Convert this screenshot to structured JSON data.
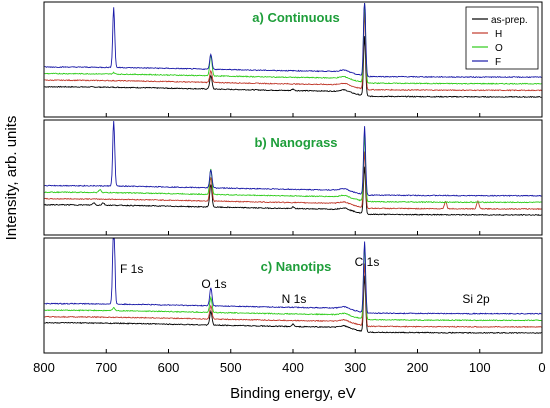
{
  "chart_data": {
    "type": "line",
    "xlabel": "Binding energy, eV",
    "ylabel": "Intensity, arb. units",
    "xlim": [
      800,
      0
    ],
    "xreverse": true,
    "x_ticks": [
      800,
      700,
      600,
      500,
      400,
      300,
      200,
      100,
      0
    ],
    "title_color": "#1e9e3a",
    "legend": {
      "placement": "top-right",
      "entries": [
        {
          "name": "as-prep.",
          "color": "#000000"
        },
        {
          "name": "H",
          "color": "#c0392b"
        },
        {
          "name": "O",
          "color": "#2ecc1a"
        },
        {
          "name": "F",
          "color": "#1a1aa8"
        }
      ]
    },
    "panels": [
      {
        "title": "a) Continuous",
        "offsets": [
          0,
          0.22,
          0.44,
          0.66
        ],
        "peaks": {
          "as-prep.": [
            [
              285,
              2.0
            ],
            [
              532,
              0.45
            ],
            [
              400,
              0.05
            ]
          ],
          "H": [
            [
              285,
              2.6
            ],
            [
              532,
              0.4
            ]
          ],
          "O": [
            [
              285,
              2.8
            ],
            [
              532,
              0.7
            ],
            [
              688,
              0.05
            ]
          ],
          "F": [
            [
              285,
              2.7
            ],
            [
              532,
              0.5
            ],
            [
              688,
              2.0
            ]
          ]
        }
      },
      {
        "title": "b) Nanograss",
        "offsets": [
          0,
          0.2,
          0.42,
          0.64
        ],
        "peaks": {
          "as-prep.": [
            [
              285,
              1.6
            ],
            [
              532,
              0.75
            ],
            [
              400,
              0.05
            ],
            [
              720,
              0.08
            ],
            [
              705,
              0.08
            ]
          ],
          "H": [
            [
              285,
              1.9
            ],
            [
              532,
              0.8
            ],
            [
              155,
              0.25
            ],
            [
              103,
              0.25
            ]
          ],
          "O": [
            [
              285,
              2.2
            ],
            [
              532,
              0.85
            ],
            [
              710,
              0.1
            ]
          ],
          "F": [
            [
              285,
              2.3
            ],
            [
              532,
              0.6
            ],
            [
              688,
              2.2
            ]
          ]
        }
      },
      {
        "title": "c) Nanotips",
        "offsets": [
          0,
          0.2,
          0.42,
          0.64
        ],
        "peaks": {
          "as-prep.": [
            [
              285,
              1.9
            ],
            [
              532,
              0.45
            ],
            [
              400,
              0.08
            ]
          ],
          "H": [
            [
              285,
              2.1
            ],
            [
              532,
              0.45
            ]
          ],
          "O": [
            [
              285,
              2.5
            ],
            [
              532,
              0.5
            ],
            [
              688,
              0.1
            ]
          ],
          "F": [
            [
              285,
              2.4
            ],
            [
              532,
              0.6
            ],
            [
              688,
              3.2
            ]
          ]
        },
        "annotations": [
          {
            "text": "F 1s",
            "x": 688
          },
          {
            "text": "O 1s",
            "x": 532
          },
          {
            "text": "N 1s",
            "x": 400
          },
          {
            "text": "C 1s",
            "x": 285
          },
          {
            "text": "Si 2p",
            "x": 103
          }
        ]
      }
    ]
  }
}
